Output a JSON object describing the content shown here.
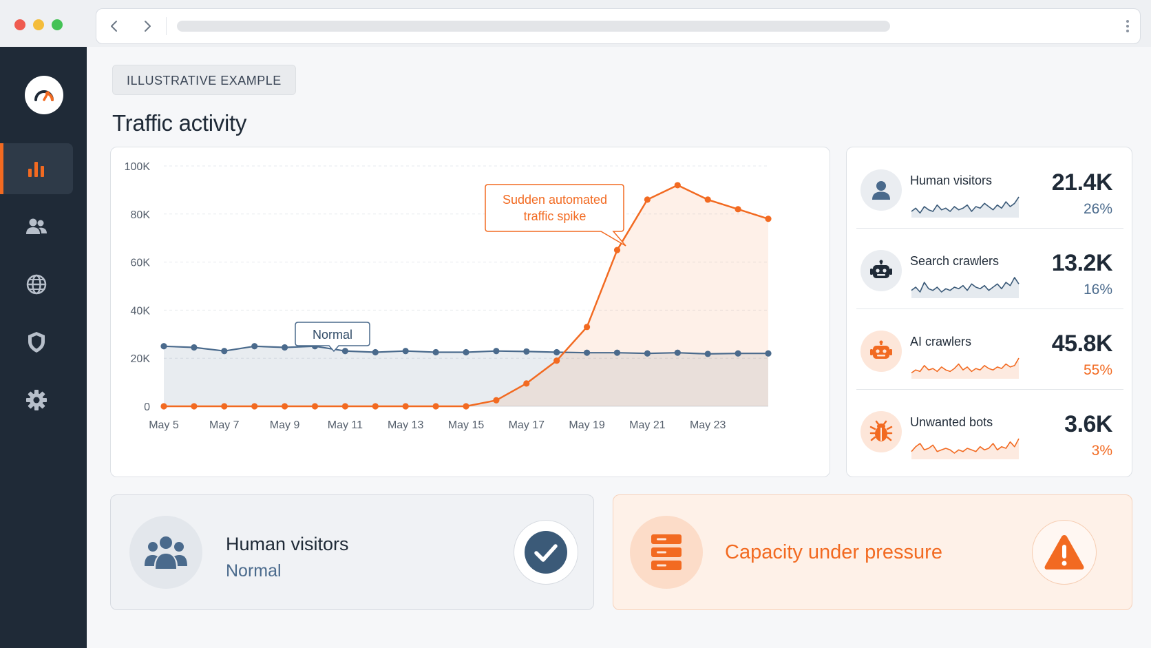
{
  "badge": "ILLUSTRATIVE EXAMPLE",
  "page_title": "Traffic activity",
  "chart": {
    "callout_normal": "Normal",
    "callout_spike_line1": "Sudden automated",
    "callout_spike_line2": "traffic spike"
  },
  "chart_data": {
    "type": "line",
    "categories": [
      "May 5",
      "May 6",
      "May 7",
      "May 8",
      "May 9",
      "May 10",
      "May 11",
      "May 12",
      "May 13",
      "May 14",
      "May 15",
      "May 16",
      "May 17",
      "May 18",
      "May 19",
      "May 20",
      "May 21",
      "May 22",
      "May 23",
      "May 24",
      "May 25"
    ],
    "tick_labels": [
      "May 5",
      "May 7",
      "May 9",
      "May 11",
      "May 13",
      "May 15",
      "May 17",
      "May 19",
      "May 21",
      "May 23"
    ],
    "y_ticks": [
      "0",
      "20K",
      "40K",
      "60K",
      "80K",
      "100K"
    ],
    "ylim": [
      0,
      100000
    ],
    "grid": true,
    "series": [
      {
        "color": "#4a6a8c",
        "values": [
          25000,
          24500,
          23000,
          25000,
          24500,
          25000,
          23000,
          22500,
          23000,
          22500,
          22500,
          23000,
          22800,
          22500,
          22300,
          22300,
          22000,
          22300,
          21800,
          22000,
          22000
        ]
      },
      {
        "color": "#f26a21",
        "values": [
          0,
          0,
          0,
          0,
          0,
          0,
          0,
          0,
          0,
          0,
          0,
          2500,
          9500,
          19000,
          33000,
          65000,
          86000,
          92000,
          86000,
          82000,
          78000
        ]
      }
    ]
  },
  "stats": [
    {
      "label": "Human visitors",
      "value": "21.4K",
      "pct": "26%",
      "icon": "person-icon",
      "tone": "blue",
      "spark": [
        3,
        5,
        2,
        6,
        4,
        3,
        7,
        4,
        5,
        3,
        6,
        4,
        5,
        7,
        3,
        6,
        5,
        8,
        6,
        4,
        7,
        5,
        9,
        6,
        8,
        12
      ]
    },
    {
      "label": "Search crawlers",
      "value": "13.2K",
      "pct": "16%",
      "icon": "robot-icon",
      "tone": "blue",
      "spark": [
        4,
        6,
        3,
        9,
        5,
        4,
        6,
        3,
        5,
        4,
        6,
        5,
        7,
        4,
        8,
        6,
        5,
        7,
        4,
        6,
        8,
        5,
        9,
        7,
        12,
        8
      ]
    },
    {
      "label": "AI crawlers",
      "value": "45.8K",
      "pct": "55%",
      "icon": "robot-icon",
      "tone": "orange",
      "spark": [
        3,
        5,
        4,
        8,
        5,
        6,
        4,
        7,
        5,
        4,
        6,
        9,
        5,
        7,
        4,
        6,
        5,
        8,
        6,
        5,
        7,
        6,
        9,
        7,
        8,
        13
      ]
    },
    {
      "label": "Unwanted bots",
      "value": "3.6K",
      "pct": "3%",
      "icon": "bug-icon",
      "tone": "orange",
      "spark": [
        4,
        7,
        9,
        5,
        6,
        8,
        4,
        5,
        6,
        5,
        3,
        5,
        4,
        6,
        5,
        4,
        7,
        5,
        6,
        9,
        5,
        7,
        6,
        10,
        7,
        12
      ]
    }
  ],
  "bottom": {
    "human_title": "Human visitors",
    "human_status": "Normal",
    "capacity_title": "Capacity under pressure"
  },
  "colors": {
    "accent": "#f26a21",
    "navy": "#1f2a37",
    "blue": "#4a6a8c"
  }
}
